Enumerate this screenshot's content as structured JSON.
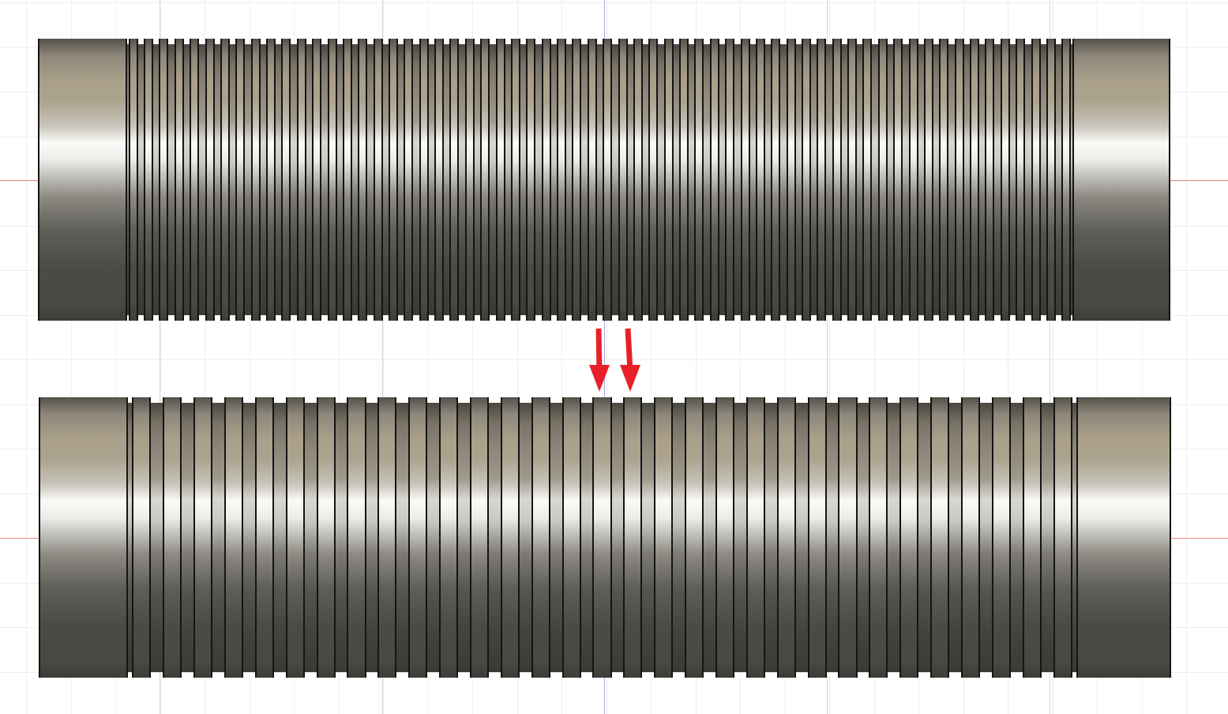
{
  "scene": {
    "background": "#ffffff",
    "grid_minor_color": "#eeeeee",
    "grid_major_color": "#d8d8d8",
    "axis_x_color": "#ef8b8b",
    "axis_y_color": "#a9a9e6"
  },
  "parts": [
    {
      "name": "threaded-rod-fine-pitch",
      "ridge_count": 62
    },
    {
      "name": "threaded-rod-coarse-pitch",
      "ridge_count": 31
    }
  ],
  "annotation": {
    "icon": "down-arrow-icon",
    "color": "#e8202a",
    "count": 2
  }
}
